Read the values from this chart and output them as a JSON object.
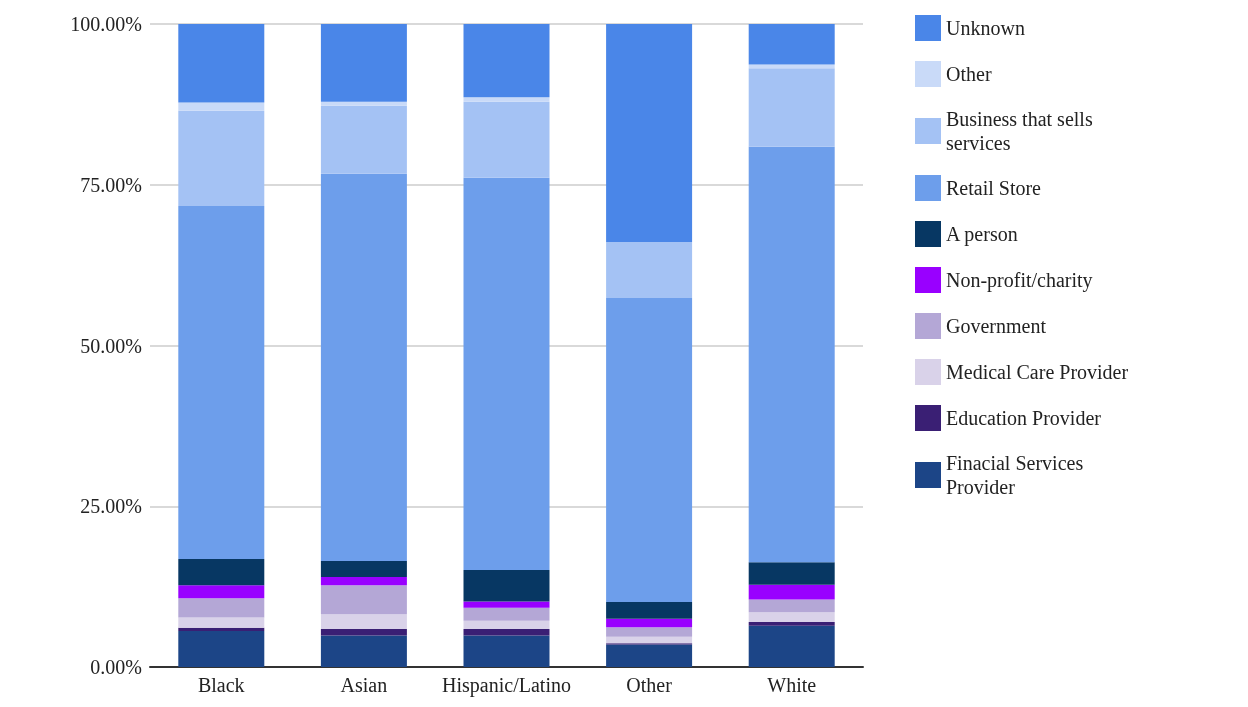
{
  "chart_data": {
    "type": "bar",
    "stacked": true,
    "categories": [
      "Black",
      "Asian",
      "Hispanic/Latino",
      "Other",
      "White"
    ],
    "series": [
      {
        "name": "Finacial Services Provider",
        "color": "#1c4587",
        "values": [
          5.6,
          4.9,
          4.9,
          3.5,
          6.4
        ]
      },
      {
        "name": "Education Provider",
        "color": "#3a1f74",
        "values": [
          0.5,
          1.0,
          1.0,
          0.2,
          0.6
        ]
      },
      {
        "name": "Medical Care Provider",
        "color": "#d9d2e9",
        "values": [
          1.6,
          2.3,
          1.3,
          1.0,
          1.5
        ]
      },
      {
        "name": "Government",
        "color": "#b4a7d6",
        "values": [
          3.0,
          4.5,
          2.0,
          1.5,
          2.0
        ]
      },
      {
        "name": "Non-profit/charity",
        "color": "#9900ff",
        "values": [
          2.0,
          1.3,
          1.0,
          1.3,
          2.3
        ]
      },
      {
        "name": "A person",
        "color": "#073763",
        "values": [
          4.1,
          2.5,
          4.9,
          2.6,
          3.5
        ]
      },
      {
        "name": "Retail Store",
        "color": "#6d9eeb",
        "values": [
          54.9,
          60.2,
          61.0,
          47.3,
          64.6
        ]
      },
      {
        "name": "Business that sells services",
        "color": "#a4c2f4",
        "values": [
          14.8,
          10.6,
          11.8,
          8.7,
          12.2
        ]
      },
      {
        "name": "Other",
        "color": "#c9daf8",
        "values": [
          1.3,
          0.6,
          0.7,
          0,
          0.6
        ]
      },
      {
        "name": "Unknown",
        "color": "#4a86e8",
        "values": [
          12.2,
          12.1,
          11.4,
          33.9,
          6.3
        ]
      }
    ],
    "ylim": [
      0,
      100
    ],
    "yticks": [
      {
        "value": 0,
        "label": "0.00%"
      },
      {
        "value": 25,
        "label": "25.00%"
      },
      {
        "value": 50,
        "label": "50.00%"
      },
      {
        "value": 75,
        "label": "75.00%"
      },
      {
        "value": 100,
        "label": "100.00%"
      }
    ],
    "grid": "y",
    "legend": "right"
  }
}
